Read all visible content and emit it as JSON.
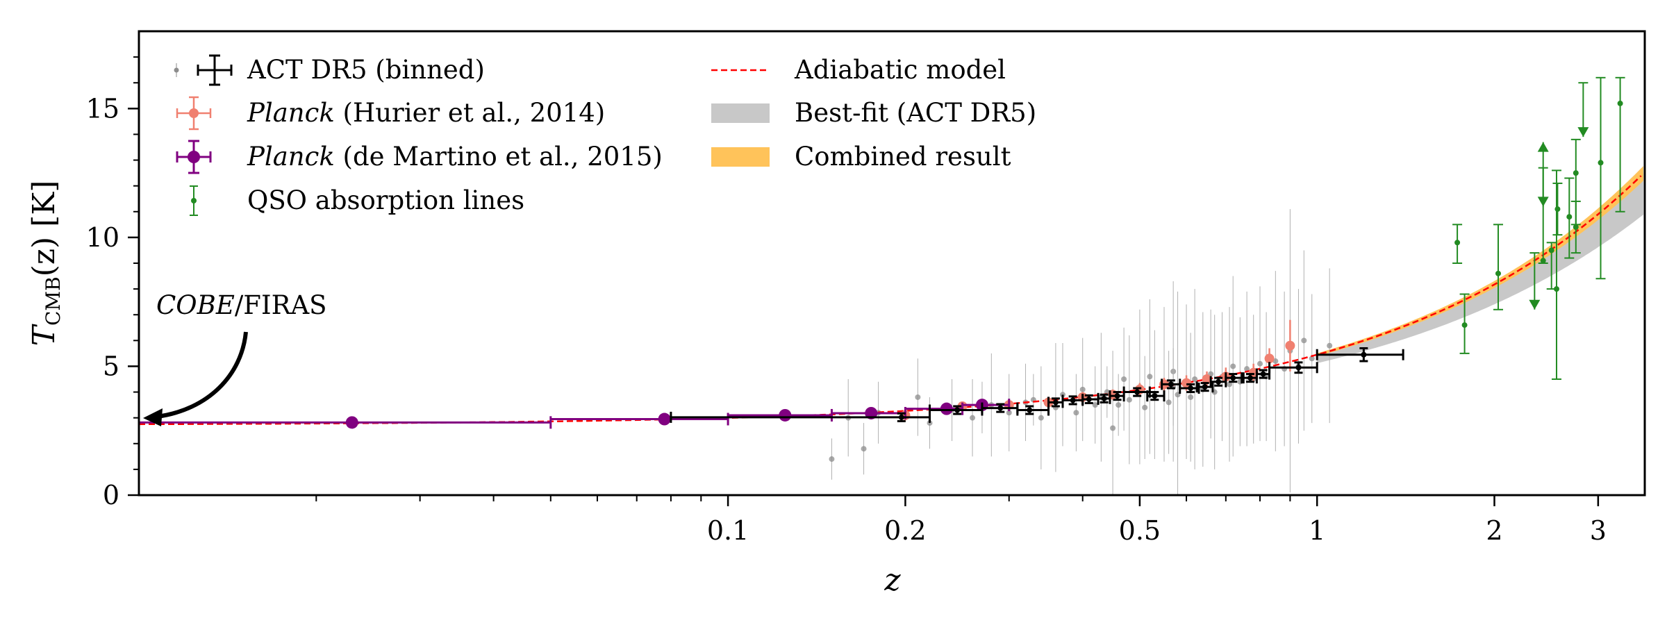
{
  "chart_data": {
    "type": "scatter",
    "xlabel": "z",
    "ylabel_main": "T",
    "ylabel_sub": "CMB",
    "ylabel_rest": "(z) [K]",
    "xscale": "log",
    "xlim": [
      0.01,
      3.6
    ],
    "ylim": [
      0,
      18
    ],
    "x_tick_labels": [
      {
        "value": 0.1,
        "label": "0.1"
      },
      {
        "value": 0.2,
        "label": "0.2"
      },
      {
        "value": 0.5,
        "label": "0.5"
      },
      {
        "value": 1,
        "label": "1"
      },
      {
        "value": 2,
        "label": "2"
      },
      {
        "value": 3,
        "label": "3"
      }
    ],
    "x_minor_ticks": [
      0.02,
      0.03,
      0.04,
      0.05,
      0.06,
      0.07,
      0.08,
      0.09,
      0.3,
      0.4,
      0.6,
      0.7,
      0.8,
      0.9
    ],
    "y_ticks": [
      0,
      5,
      10,
      15
    ],
    "y_minor_ticks": [
      1,
      2,
      3,
      4,
      6,
      7,
      8,
      9,
      11,
      12,
      13,
      14,
      16,
      17
    ],
    "legend": {
      "placement": "top-left",
      "entries": [
        {
          "key": "act",
          "label": "ACT DR5 (binned)"
        },
        {
          "key": "hurier",
          "italic": "Planck",
          "label": " (Hurier et al., 2014)"
        },
        {
          "key": "demartino",
          "italic": "Planck",
          "label": " (de Martino et al., 2015)"
        },
        {
          "key": "qso",
          "label": "QSO absorption lines"
        },
        {
          "key": "model",
          "label": "Adiabatic model"
        },
        {
          "key": "bestfit",
          "label": "Best-fit (ACT DR5)"
        },
        {
          "key": "combined",
          "label": "Combined result"
        }
      ]
    },
    "annotation": {
      "italic": "COBE",
      "text": "/FIRAS",
      "target_x": 0.01,
      "target_y": 2.725
    },
    "colors": {
      "act_binned": "#000000",
      "act_scatter": "#8c8c8c",
      "hurier": "#f08070",
      "demartino": "#800080",
      "qso": "#228b22",
      "model": "#ff0000",
      "bestfit_band": "#c8c8c8",
      "combined_band": "#ffc35a"
    },
    "model": {
      "T0": 2.725,
      "form": "T0*(1+z)"
    },
    "bestfit_band": {
      "beta_low": 0.91,
      "beta_high": 1.0
    },
    "combined_band": {
      "beta_low": 0.985,
      "beta_high": 1.015
    },
    "act_binned": [
      {
        "x": 0.197,
        "xlo": 0.08,
        "xhi": 0.22,
        "y": 3.02,
        "yerr": 0.15
      },
      {
        "x": 0.245,
        "xlo": 0.22,
        "xhi": 0.27,
        "y": 3.3,
        "yerr": 0.15
      },
      {
        "x": 0.29,
        "xlo": 0.27,
        "xhi": 0.31,
        "y": 3.38,
        "yerr": 0.15
      },
      {
        "x": 0.325,
        "xlo": 0.31,
        "xhi": 0.35,
        "y": 3.3,
        "yerr": 0.15
      },
      {
        "x": 0.36,
        "xlo": 0.35,
        "xhi": 0.37,
        "y": 3.6,
        "yerr": 0.15
      },
      {
        "x": 0.385,
        "xlo": 0.37,
        "xhi": 0.4,
        "y": 3.68,
        "yerr": 0.15
      },
      {
        "x": 0.41,
        "xlo": 0.4,
        "xhi": 0.425,
        "y": 3.72,
        "yerr": 0.15
      },
      {
        "x": 0.435,
        "xlo": 0.425,
        "xhi": 0.445,
        "y": 3.75,
        "yerr": 0.15
      },
      {
        "x": 0.458,
        "xlo": 0.445,
        "xhi": 0.47,
        "y": 3.85,
        "yerr": 0.15
      },
      {
        "x": 0.495,
        "xlo": 0.47,
        "xhi": 0.52,
        "y": 4.0,
        "yerr": 0.15
      },
      {
        "x": 0.53,
        "xlo": 0.515,
        "xhi": 0.55,
        "y": 3.85,
        "yerr": 0.15
      },
      {
        "x": 0.565,
        "xlo": 0.545,
        "xhi": 0.585,
        "y": 4.3,
        "yerr": 0.15
      },
      {
        "x": 0.61,
        "xlo": 0.585,
        "xhi": 0.63,
        "y": 4.15,
        "yerr": 0.15
      },
      {
        "x": 0.645,
        "xlo": 0.625,
        "xhi": 0.665,
        "y": 4.2,
        "yerr": 0.15
      },
      {
        "x": 0.68,
        "xlo": 0.66,
        "xhi": 0.7,
        "y": 4.4,
        "yerr": 0.15
      },
      {
        "x": 0.72,
        "xlo": 0.7,
        "xhi": 0.75,
        "y": 4.55,
        "yerr": 0.15
      },
      {
        "x": 0.77,
        "xlo": 0.745,
        "xhi": 0.79,
        "y": 4.55,
        "yerr": 0.15
      },
      {
        "x": 0.81,
        "xlo": 0.79,
        "xhi": 0.83,
        "y": 4.7,
        "yerr": 0.15
      },
      {
        "x": 0.93,
        "xlo": 0.83,
        "xhi": 1.0,
        "y": 4.95,
        "yerr": 0.2
      },
      {
        "x": 1.2,
        "xlo": 1.0,
        "xhi": 1.4,
        "y": 5.45,
        "yerr": 0.25
      }
    ],
    "act_scatter": [
      [
        0.15,
        1.4,
        0.8
      ],
      [
        0.17,
        1.8,
        1.0
      ],
      [
        0.16,
        3.0,
        1.5
      ],
      [
        0.18,
        3.2,
        1.2
      ],
      [
        0.21,
        3.8,
        1.5
      ],
      [
        0.22,
        2.8,
        1.0
      ],
      [
        0.24,
        3.3,
        1.2
      ],
      [
        0.26,
        3.0,
        1.5
      ],
      [
        0.28,
        3.5,
        2.0
      ],
      [
        0.3,
        3.2,
        1.5
      ],
      [
        0.32,
        3.6,
        1.5
      ],
      [
        0.34,
        3.0,
        2.0
      ],
      [
        0.36,
        3.4,
        2.5
      ],
      [
        0.37,
        3.9,
        2.0
      ],
      [
        0.39,
        3.2,
        1.5
      ],
      [
        0.4,
        4.1,
        2.0
      ],
      [
        0.42,
        3.5,
        1.5
      ],
      [
        0.43,
        3.8,
        2.5
      ],
      [
        0.45,
        2.6,
        3.0
      ],
      [
        0.47,
        4.5,
        2.0
      ],
      [
        0.48,
        3.7,
        2.5
      ],
      [
        0.5,
        4.2,
        3.0
      ],
      [
        0.51,
        3.4,
        2.0
      ],
      [
        0.52,
        4.6,
        3.0
      ],
      [
        0.53,
        3.9,
        2.5
      ],
      [
        0.55,
        4.3,
        3.0
      ],
      [
        0.56,
        3.6,
        2.0
      ],
      [
        0.57,
        4.8,
        3.5
      ],
      [
        0.58,
        3.9,
        4.0
      ],
      [
        0.6,
        4.4,
        3.0
      ],
      [
        0.61,
        3.8,
        2.5
      ],
      [
        0.62,
        4.5,
        3.5
      ],
      [
        0.64,
        4.1,
        3.0
      ],
      [
        0.66,
        4.7,
        2.5
      ],
      [
        0.67,
        4.0,
        3.0
      ],
      [
        0.69,
        4.6,
        2.5
      ],
      [
        0.71,
        4.3,
        3.0
      ],
      [
        0.72,
        5.0,
        3.5
      ],
      [
        0.74,
        4.4,
        2.5
      ],
      [
        0.76,
        4.9,
        3.0
      ],
      [
        0.78,
        4.5,
        2.5
      ],
      [
        0.8,
        5.1,
        3.0
      ],
      [
        0.82,
        4.6,
        2.5
      ],
      [
        0.85,
        5.2,
        3.5
      ],
      [
        0.88,
        4.9,
        3.0
      ],
      [
        0.9,
        5.6,
        5.5
      ],
      [
        0.93,
        5.0,
        3.0
      ],
      [
        0.95,
        6.0,
        3.5
      ],
      [
        0.98,
        5.3,
        2.5
      ],
      [
        1.05,
        5.8,
        3.0
      ],
      [
        0.44,
        4.0,
        1.0
      ],
      [
        0.46,
        3.5,
        1.2
      ],
      [
        0.33,
        3.7,
        1.0
      ],
      [
        0.27,
        3.4,
        1.0
      ],
      [
        0.57,
        4.2,
        1.5
      ]
    ],
    "hurier": [
      {
        "x": 0.2,
        "y": 3.1,
        "yerr": 0.2
      },
      {
        "x": 0.25,
        "y": 3.45,
        "yerr": 0.15
      },
      {
        "x": 0.3,
        "y": 3.5,
        "yerr": 0.15
      },
      {
        "x": 0.35,
        "y": 3.6,
        "yerr": 0.15
      },
      {
        "x": 0.4,
        "y": 3.8,
        "yerr": 0.2
      },
      {
        "x": 0.45,
        "y": 3.9,
        "yerr": 0.2
      },
      {
        "x": 0.5,
        "y": 4.1,
        "yerr": 0.25
      },
      {
        "x": 0.55,
        "y": 4.3,
        "yerr": 0.25
      },
      {
        "x": 0.6,
        "y": 4.35,
        "yerr": 0.3
      },
      {
        "x": 0.65,
        "y": 4.5,
        "yerr": 0.3
      },
      {
        "x": 0.7,
        "y": 4.6,
        "yerr": 0.35
      },
      {
        "x": 0.78,
        "y": 4.75,
        "yerr": 0.35
      },
      {
        "x": 0.83,
        "y": 5.3,
        "yerr": 0.4
      },
      {
        "x": 0.9,
        "y": 5.8,
        "yerr": 1.0
      }
    ],
    "demartino": [
      {
        "x": 0.023,
        "xlo": 0.01,
        "xhi": 0.05,
        "y": 2.82,
        "yerr": 0.06
      },
      {
        "x": 0.078,
        "xlo": 0.05,
        "xhi": 0.1,
        "y": 2.95,
        "yerr": 0.06
      },
      {
        "x": 0.125,
        "xlo": 0.1,
        "xhi": 0.15,
        "y": 3.1,
        "yerr": 0.08
      },
      {
        "x": 0.175,
        "xlo": 0.15,
        "xhi": 0.2,
        "y": 3.18,
        "yerr": 0.1
      },
      {
        "x": 0.235,
        "xlo": 0.2,
        "xhi": 0.25,
        "y": 3.35,
        "yerr": 0.12
      },
      {
        "x": 0.27,
        "xlo": 0.25,
        "xhi": 0.3,
        "y": 3.5,
        "yerr": 0.15
      }
    ],
    "qso": [
      {
        "x": 1.73,
        "y": 9.8,
        "ylo": 9.0,
        "yhi": 10.5
      },
      {
        "x": 1.78,
        "y": 6.6,
        "ylo": 5.5,
        "yhi": 7.8
      },
      {
        "x": 2.03,
        "y": 8.6,
        "ylo": 7.2,
        "yhi": 10.5
      },
      {
        "x": 2.34,
        "ylo": 7.2,
        "yhi": 9.4,
        "limit": "upper"
      },
      {
        "x": 2.42,
        "y": 9.1,
        "ylo": 9.0,
        "yhi": 13.7,
        "limit": "lower"
      },
      {
        "x": 2.42,
        "ylo": 11.2,
        "yhi": 12.7,
        "limit": "upper"
      },
      {
        "x": 2.5,
        "y": 9.5,
        "ylo": 8.0,
        "yhi": 9.8
      },
      {
        "x": 2.55,
        "y": 8.0,
        "ylo": 4.5,
        "yhi": 12.6
      },
      {
        "x": 2.56,
        "y": 11.1,
        "ylo": 10.1,
        "yhi": 12.1
      },
      {
        "x": 2.68,
        "y": 10.8,
        "ylo": 9.2,
        "yhi": 12.3
      },
      {
        "x": 2.75,
        "y": 10.4,
        "ylo": 9.4,
        "yhi": 11.4
      },
      {
        "x": 2.75,
        "y": 12.5,
        "ylo": 10.5,
        "yhi": 13.8
      },
      {
        "x": 2.83,
        "ylo": 13.9,
        "yhi": 16.0,
        "limit": "upper"
      },
      {
        "x": 3.03,
        "y": 12.9,
        "ylo": 8.4,
        "yhi": 16.2
      },
      {
        "x": 3.27,
        "y": 15.2,
        "ylo": 11.0,
        "yhi": 16.2
      }
    ]
  }
}
